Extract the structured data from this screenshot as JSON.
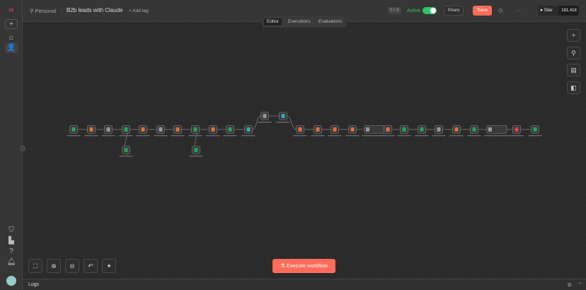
{
  "header": {
    "project": "Personal",
    "title": "B2b leads with Claude",
    "add_tag": "+ Add tag",
    "counter": "0 / 3",
    "active_label": "Active",
    "active": true,
    "share": "Share",
    "save": "Save",
    "github_star": "Star",
    "github_count": "181,418"
  },
  "tabs": [
    {
      "label": "Editor",
      "selected": true
    },
    {
      "label": "Executions"
    },
    {
      "label": "Evaluations"
    }
  ],
  "execute_label": "Execute workflow",
  "logs_label": "Logs",
  "colors": {
    "accent": "#ea4b71",
    "save": "#ff6d5a",
    "active": "#2ec56b",
    "sheet": "#1fa463",
    "code": "#e0703c"
  },
  "nodes": [
    "sheet",
    "code",
    "http",
    "sheet-branch",
    "code",
    "loop",
    "code",
    "sheet-branch",
    "code",
    "sheet",
    "table",
    "http",
    "doc",
    "code",
    "code",
    "code",
    "code",
    "ai",
    "code",
    "sheet",
    "sheet",
    "http",
    "code",
    "sheet",
    "ai",
    "gmail",
    "sheet",
    "sheet",
    "sheet"
  ]
}
